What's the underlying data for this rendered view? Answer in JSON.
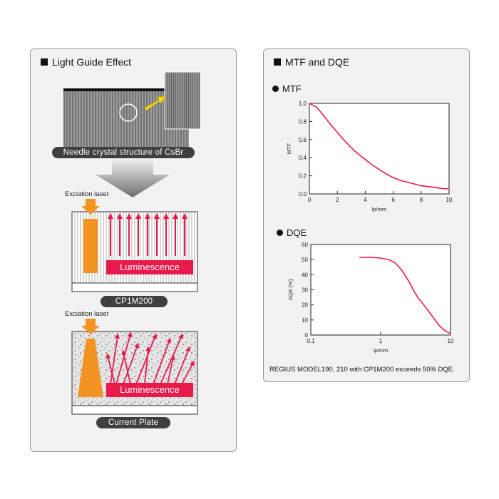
{
  "left": {
    "title": "Light Guide Effect",
    "crystal_label": "Needle crystal structure of CsBr",
    "laser_label_1": "Exciation laser",
    "laser_label_2": "Exciation laser",
    "luminescence_1": "Luminescence",
    "luminescence_2": "Luminescence",
    "plate_1": "CP1M200",
    "plate_2": "Current Plate"
  },
  "right": {
    "title": "MTF and DQE",
    "mtf_heading": "MTF",
    "dqe_heading": "DQE",
    "caption": "REGIUS MODEL190, 210 with CP1M200 exceeds 50% DQE."
  },
  "colors": {
    "accent_red": "#e8194b",
    "orange": "#f39322",
    "dark": "#3f3f3f"
  },
  "chart_data": [
    {
      "type": "line",
      "title": "MTF",
      "xlabel": "lp/mm",
      "ylabel": "MTF",
      "xlim": [
        0,
        10
      ],
      "ylim": [
        0,
        1.0
      ],
      "xticks": [
        "0",
        "2",
        "4",
        "6",
        "8",
        "10"
      ],
      "yticks": [
        "0.0",
        "0.2",
        "0.4",
        "0.6",
        "0.8",
        "1.0"
      ],
      "grid": false,
      "series": [
        {
          "x": [
            0,
            0.5,
            1,
            1.5,
            2,
            2.5,
            3,
            3.5,
            4,
            4.5,
            5,
            5.5,
            6,
            6.5,
            7,
            7.5,
            8,
            8.5,
            9,
            9.5,
            10
          ],
          "y": [
            1.0,
            0.96,
            0.87,
            0.77,
            0.68,
            0.59,
            0.51,
            0.44,
            0.38,
            0.32,
            0.27,
            0.22,
            0.18,
            0.15,
            0.13,
            0.11,
            0.09,
            0.08,
            0.07,
            0.06,
            0.055
          ]
        }
      ]
    },
    {
      "type": "line",
      "title": "DQE",
      "xlabel": "lp/mm",
      "ylabel": "DQE  (%)",
      "xscale": "log",
      "xlim": [
        0.1,
        10
      ],
      "ylim": [
        0,
        60
      ],
      "xticks": [
        "0.1",
        "1",
        "10"
      ],
      "yticks": [
        "0",
        "10",
        "20",
        "30",
        "40",
        "50",
        "60"
      ],
      "grid": false,
      "series": [
        {
          "x": [
            0.5,
            0.7,
            1,
            1.3,
            1.6,
            2,
            2.5,
            3,
            3.5,
            4,
            5,
            6,
            7,
            8,
            9,
            10
          ],
          "y": [
            51.5,
            51.5,
            51,
            50,
            48,
            43,
            36,
            29,
            24,
            21,
            15,
            10,
            6,
            3.5,
            2,
            1
          ]
        }
      ]
    }
  ]
}
